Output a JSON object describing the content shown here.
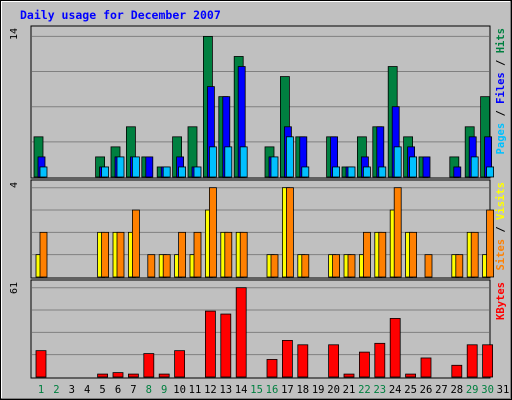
{
  "chart_data": {
    "type": "bar",
    "title": "Daily usage for December 2007",
    "categories": [
      "1",
      "2",
      "3",
      "4",
      "5",
      "6",
      "7",
      "8",
      "9",
      "10",
      "11",
      "12",
      "13",
      "14",
      "15",
      "16",
      "17",
      "18",
      "19",
      "20",
      "21",
      "22",
      "23",
      "24",
      "25",
      "26",
      "27",
      "28",
      "29",
      "30",
      "31"
    ],
    "weekend_days": [
      "1",
      "2",
      "8",
      "9",
      "15",
      "16",
      "22",
      "23",
      "29",
      "30"
    ],
    "panels": [
      {
        "id": "hits",
        "max_label": "14",
        "ymax": 14,
        "legend": [
          {
            "text": "Pages",
            "color": "#00c0ff"
          },
          {
            "text": " / ",
            "color": "#000000"
          },
          {
            "text": "Files",
            "color": "#0000ff"
          },
          {
            "text": " / ",
            "color": "#000000"
          },
          {
            "text": "Hits",
            "color": "#008040"
          }
        ],
        "series": [
          {
            "name": "Hits",
            "color": "#008040",
            "values": [
              4,
              0,
              0,
              0,
              2,
              3,
              5,
              2,
              1,
              4,
              5,
              14,
              8,
              12,
              0,
              3,
              10,
              4,
              0,
              4,
              1,
              4,
              5,
              11,
              4,
              2,
              0,
              2,
              5,
              8,
              0
            ]
          },
          {
            "name": "Files",
            "color": "#0000ff",
            "values": [
              2,
              0,
              0,
              0,
              1,
              2,
              2,
              2,
              1,
              2,
              1,
              9,
              8,
              11,
              0,
              2,
              5,
              4,
              0,
              4,
              1,
              2,
              5,
              7,
              3,
              2,
              0,
              1,
              4,
              4,
              0
            ]
          },
          {
            "name": "Pages",
            "color": "#00c0ff",
            "values": [
              1,
              0,
              0,
              0,
              1,
              2,
              2,
              0,
              1,
              1,
              1,
              3,
              3,
              3,
              0,
              2,
              4,
              1,
              0,
              1,
              1,
              1,
              1,
              3,
              2,
              0,
              0,
              0,
              2,
              1,
              0
            ]
          }
        ]
      },
      {
        "id": "visits",
        "max_label": "4",
        "ymax": 4,
        "legend": [
          {
            "text": "Sites",
            "color": "#ff8000"
          },
          {
            "text": " / ",
            "color": "#000000"
          },
          {
            "text": "Visits",
            "color": "#ffff00"
          }
        ],
        "series": [
          {
            "name": "Visits",
            "color": "#ffff00",
            "values": [
              1,
              0,
              0,
              0,
              2,
              2,
              2,
              0,
              1,
              1,
              1,
              3,
              2,
              2,
              0,
              1,
              4,
              1,
              0,
              1,
              1,
              1,
              2,
              3,
              2,
              0,
              0,
              1,
              2,
              1,
              0
            ]
          },
          {
            "name": "Sites",
            "color": "#ff8000",
            "values": [
              2,
              0,
              0,
              0,
              2,
              2,
              3,
              1,
              1,
              2,
              2,
              4,
              2,
              2,
              0,
              1,
              4,
              1,
              0,
              1,
              1,
              2,
              2,
              4,
              2,
              1,
              0,
              1,
              2,
              3,
              0
            ]
          }
        ]
      },
      {
        "id": "kbytes",
        "max_label": "61",
        "ymax": 61,
        "legend": [
          {
            "text": "KBytes",
            "color": "#ff0000"
          }
        ],
        "series": [
          {
            "name": "KBytes",
            "color": "#ff0000",
            "values": [
              18,
              0,
              0,
              0,
              2,
              3,
              2,
              16,
              2,
              18,
              0,
              45,
              43,
              61,
              0,
              12,
              25,
              22,
              0,
              22,
              2,
              17,
              23,
              40,
              2,
              13,
              0,
              8,
              22,
              22,
              0
            ]
          }
        ]
      }
    ]
  }
}
